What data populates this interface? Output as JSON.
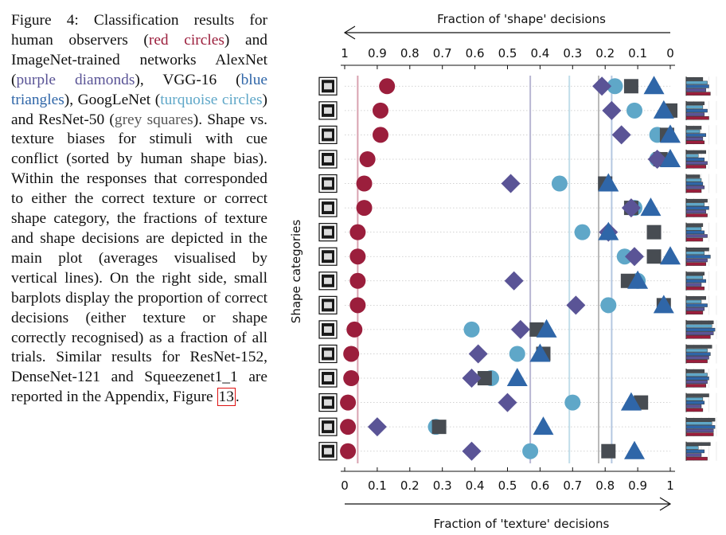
{
  "caption": {
    "figure_label": "Figure 4:",
    "t1": "Classification results for human observers (",
    "red": "red circles",
    "t2": ") and ImageNet-trained networks AlexNet (",
    "purple": "purple diamonds",
    "t3": "), VGG-16 (",
    "blue": "blue triangles",
    "t4": "), GoogLeNet (",
    "turquoise": "turquoise circles",
    "t5": ") and ResNet-50 (",
    "grey": "grey squares",
    "t6": "). Shape vs. texture biases for stimuli with cue conflict (sorted by human shape bias). Within the responses that corresponded to either the correct texture or correct shape category, the fractions of texture and shape decisions are depicted in the main plot (averages visualised by vertical lines). On the right side, small barplots display the proportion of correct decisions (either texture or shape correctly recognised) as a fraction of all trials. Similar results for ResNet-152, DenseNet-121 and Squeezenet1_1 are reported in the Appendix, Figure",
    "figure_ref": "13",
    "t7": "."
  },
  "colors": {
    "human": "#9b1e3c",
    "alexnet": "#5a5496",
    "vgg16": "#2f66a8",
    "googlenet": "#5fa7c8",
    "resnet50": "#474c52",
    "human_line": "#d9a2b0",
    "alexnet_line": "#b8b6d2",
    "vgg_line": "#b4c6e0",
    "googlenet_line": "#c0dde9",
    "resnet_line": "#b9b9b9"
  },
  "chart_data": {
    "type": "scatter",
    "title": "Fraction of 'shape' decisions",
    "xlabel": "Fraction of 'texture' decisions",
    "ylabel": "Shape categories",
    "xlim": [
      0,
      1
    ],
    "top_tick_labels": [
      "1",
      "0.9",
      "0.8",
      "0.7",
      "0.6",
      "0.5",
      "0.4",
      "0.3",
      "0.2",
      "0.1",
      "0"
    ],
    "bottom_tick_labels": [
      "0",
      "0.1",
      "0.2",
      "0.3",
      "0.4",
      "0.5",
      "0.6",
      "0.7",
      "0.8",
      "0.9",
      "1"
    ],
    "categories": [
      "airplane",
      "knife",
      "airplane-2",
      "bear",
      "dog",
      "keyboard",
      "cat",
      "elephant",
      "bottle",
      "bird",
      "car",
      "truck",
      "bottle-2",
      "chair",
      "clock",
      "bicycle"
    ],
    "category_icons": [
      "plane-icon",
      "knife-icon",
      "jet-icon",
      "bear-icon",
      "dog-icon",
      "keyboard-icon",
      "cat-icon",
      "elephant-icon",
      "bottle-icon",
      "bird-icon",
      "car-icon",
      "truck-icon",
      "bottle-icon",
      "chair-icon",
      "clock-icon",
      "bicycle-icon"
    ],
    "series": [
      {
        "name": "human",
        "marker": "circle",
        "values": [
          0.13,
          0.11,
          0.11,
          0.07,
          0.06,
          0.06,
          0.04,
          0.04,
          0.04,
          0.04,
          0.03,
          0.02,
          0.02,
          0.01,
          0.01,
          0.01
        ]
      },
      {
        "name": "AlexNet",
        "marker": "diamond",
        "values": [
          0.79,
          0.82,
          0.85,
          0.96,
          0.51,
          0.88,
          0.81,
          0.89,
          0.52,
          0.71,
          0.54,
          0.41,
          0.39,
          0.5,
          0.1,
          0.39
        ]
      },
      {
        "name": "VGG-16",
        "marker": "triangle",
        "values": [
          0.95,
          0.98,
          1.0,
          1.0,
          0.81,
          0.94,
          0.81,
          1.0,
          0.9,
          0.98,
          0.62,
          0.6,
          0.53,
          0.88,
          0.61,
          0.89
        ]
      },
      {
        "name": "GoogLeNet",
        "marker": "circle",
        "values": [
          0.83,
          0.89,
          0.96,
          0.96,
          0.66,
          0.89,
          0.73,
          0.86,
          0.9,
          0.81,
          0.39,
          0.53,
          0.45,
          0.7,
          0.28,
          0.57
        ]
      },
      {
        "name": "ResNet-50",
        "marker": "square",
        "values": [
          0.88,
          1.0,
          0.99,
          0.97,
          0.8,
          0.88,
          0.95,
          0.95,
          0.87,
          0.98,
          0.59,
          0.61,
          0.43,
          0.91,
          0.29,
          0.81
        ]
      }
    ],
    "averages": {
      "human": 0.04,
      "AlexNet": 0.57,
      "VGG-16": 0.82,
      "GoogLeNet": 0.69,
      "ResNet-50": 0.78
    },
    "accuracy_bars": {
      "series_order": [
        "human",
        "AlexNet",
        "VGG-16",
        "GoogLeNet",
        "ResNet-50"
      ],
      "values": [
        [
          0.55,
          0.7,
          0.75,
          0.65,
          0.8
        ],
        [
          0.6,
          0.55,
          0.7,
          0.6,
          0.75
        ],
        [
          0.5,
          0.45,
          0.65,
          0.55,
          0.6
        ],
        [
          0.65,
          0.4,
          0.6,
          0.7,
          0.65
        ],
        [
          0.45,
          0.5,
          0.55,
          0.6,
          0.5
        ],
        [
          0.7,
          0.6,
          0.75,
          0.65,
          0.7
        ],
        [
          0.55,
          0.5,
          0.6,
          0.7,
          0.55
        ],
        [
          0.75,
          0.6,
          0.8,
          0.7,
          0.65
        ],
        [
          0.6,
          0.55,
          0.65,
          0.5,
          0.6
        ],
        [
          0.65,
          0.5,
          0.7,
          0.6,
          0.55
        ],
        [
          0.9,
          0.85,
          0.95,
          0.9,
          0.8
        ],
        [
          0.85,
          0.7,
          0.8,
          0.75,
          0.7
        ],
        [
          0.6,
          0.7,
          0.75,
          0.7,
          0.65
        ],
        [
          0.75,
          0.55,
          0.6,
          0.5,
          0.55
        ],
        [
          0.95,
          0.85,
          0.95,
          0.9,
          0.9
        ],
        [
          0.8,
          0.4,
          0.6,
          0.5,
          0.7
        ]
      ]
    }
  }
}
